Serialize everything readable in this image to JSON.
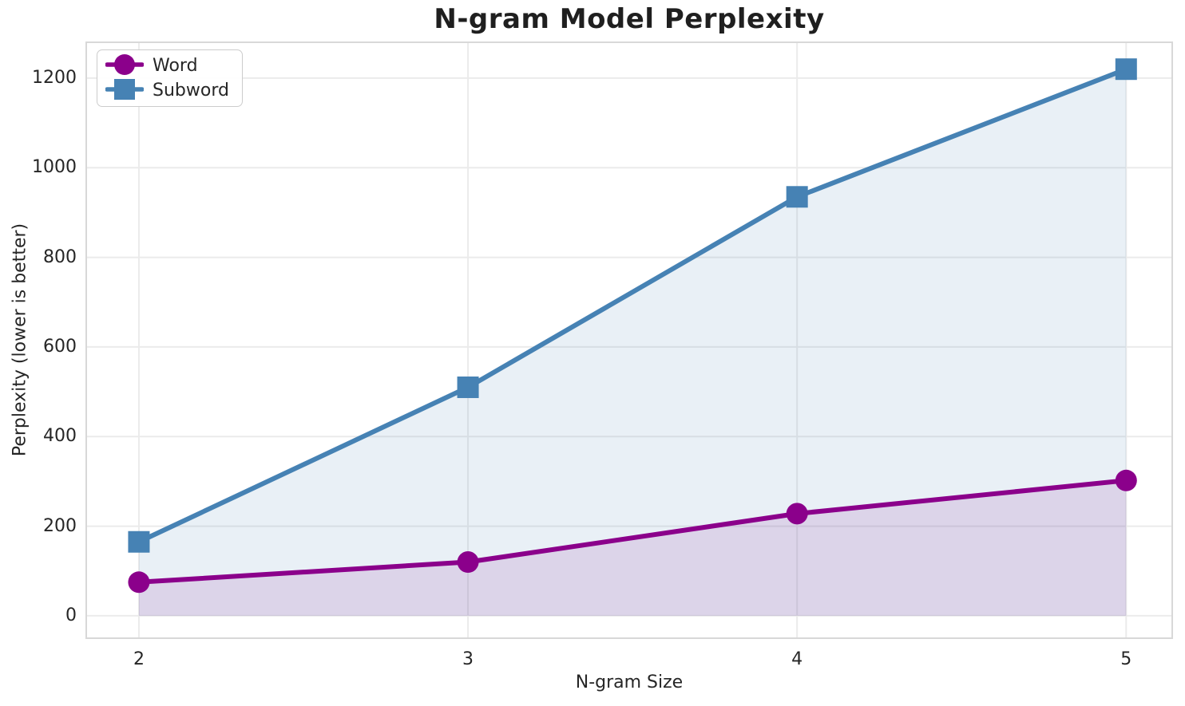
{
  "figure": {
    "background": "#ffffff"
  },
  "colors": {
    "grid": "#EBEBEB",
    "spine": "#D8D8D8",
    "text": "#262626",
    "title": "#1f1f1f",
    "legend_border": "#CCCCCC"
  },
  "chart_data": {
    "type": "line",
    "title": "N-gram Model Perplexity",
    "xlabel": "N-gram Size",
    "ylabel": "Perplexity (lower is better)",
    "categories": [
      2,
      3,
      4,
      5
    ],
    "xticks": [
      "2",
      "3",
      "4",
      "5"
    ],
    "yticks": [
      0,
      200,
      400,
      600,
      800,
      1000,
      1200
    ],
    "xlim": [
      1.84,
      5.14
    ],
    "ylim": [
      -50,
      1280
    ],
    "grid": true,
    "legend_position": "upper left",
    "series": [
      {
        "name": "Word",
        "x": [
          2,
          3,
          4,
          5
        ],
        "values": [
          75,
          120,
          228,
          302
        ],
        "color": "#8B008B",
        "marker": "circle",
        "line_width": 6,
        "fill_to_zero": true,
        "fill_alpha": 0.12
      },
      {
        "name": "Subword",
        "x": [
          2,
          3,
          4,
          5
        ],
        "values": [
          165,
          510,
          935,
          1220
        ],
        "color": "#4682B4",
        "marker": "square",
        "line_width": 6,
        "fill_to_zero": true,
        "fill_alpha": 0.12
      }
    ]
  }
}
